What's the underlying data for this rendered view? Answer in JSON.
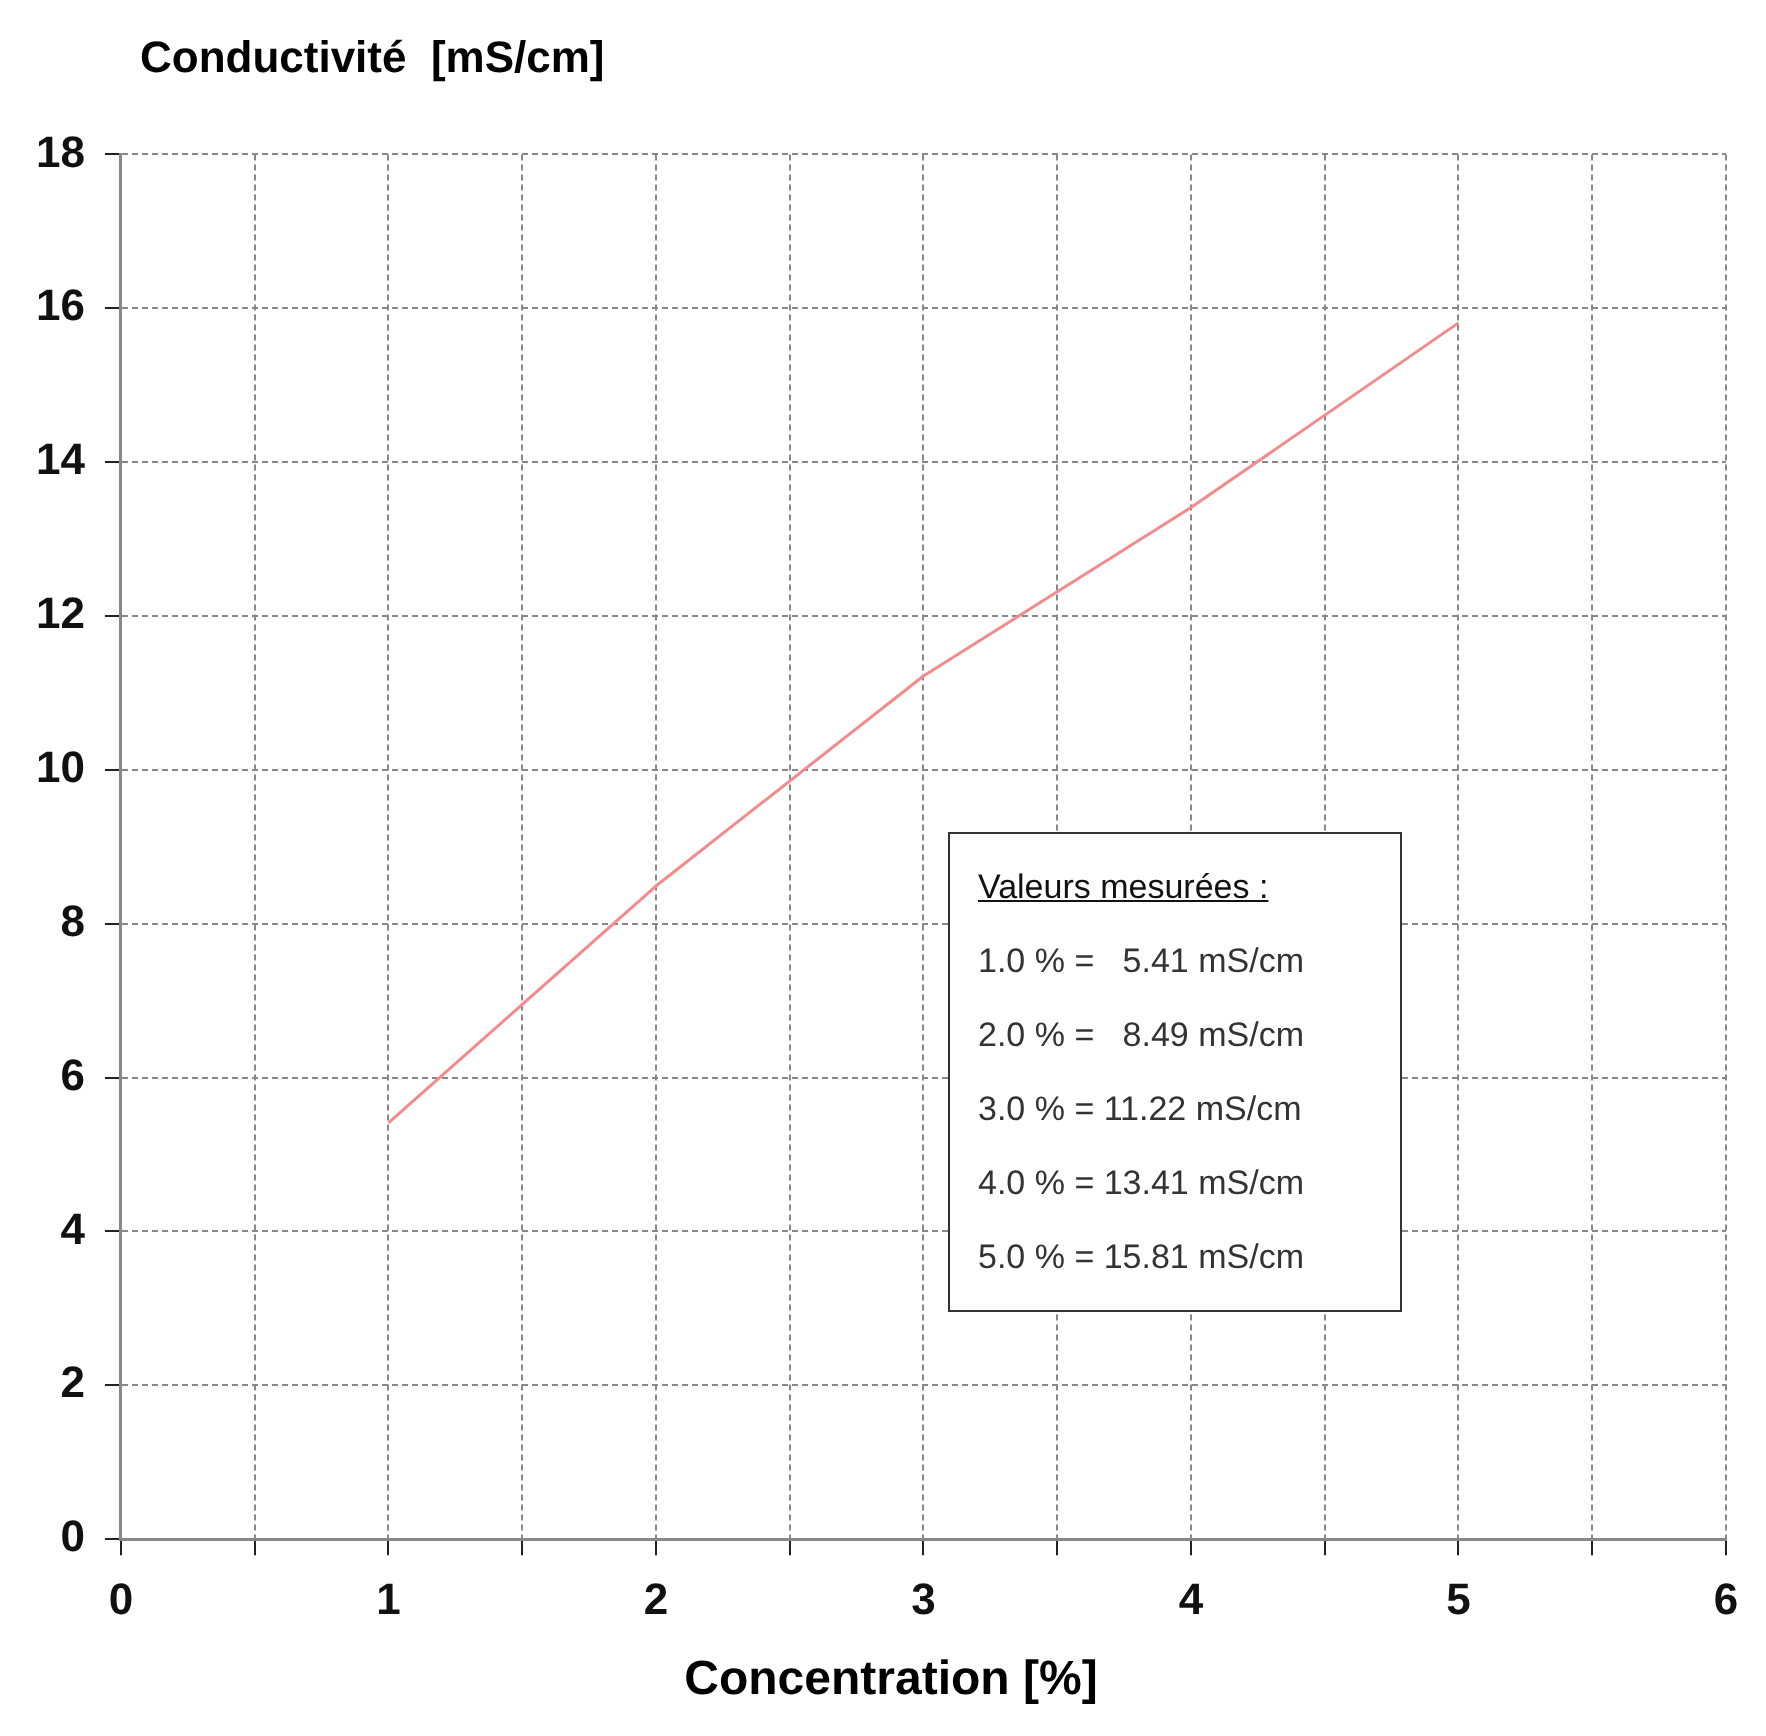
{
  "chart_data": {
    "type": "line",
    "title": "Conductivité  [mS/cm]",
    "xlabel": "Concentration [%]",
    "x": [
      1,
      2,
      3,
      4,
      5
    ],
    "series": [
      {
        "color": "#f28b8b",
        "values": [
          5.41,
          8.49,
          11.22,
          13.41,
          15.81
        ]
      }
    ],
    "xlim": [
      0,
      6
    ],
    "xticks": [
      0,
      {
        "value": 0.5,
        "label": null
      },
      1,
      {
        "value": 1.5,
        "label": null
      },
      2,
      {
        "value": 2.5,
        "label": null
      },
      3,
      {
        "value": 3.5,
        "label": null
      },
      4,
      {
        "value": 4.5,
        "label": null
      },
      5,
      {
        "value": 5.5,
        "label": null
      },
      6
    ],
    "ylim": [
      0,
      18
    ],
    "yticks": [
      0,
      2,
      4,
      6,
      8,
      10,
      12,
      14,
      16,
      18
    ],
    "grid": true,
    "legend": false,
    "marker": "none",
    "line_style": "solid",
    "annotations": [
      "Valeurs mesurées :",
      "1.0 % =   5.41 mS/cm",
      "2.0 % =   8.49 mS/cm",
      "3.0 % = 11.22 mS/cm",
      "4.0 % = 13.41 mS/cm",
      "5.0 % = 15.81 mS/cm"
    ]
  }
}
